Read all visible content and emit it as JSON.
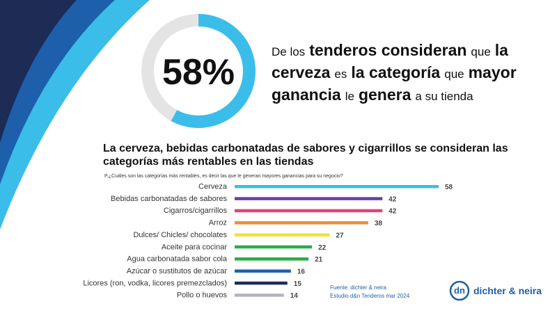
{
  "headline": [
    {
      "text": "De los",
      "bold": false
    },
    {
      "text": "tenderos consideran",
      "bold": true
    },
    {
      "text": "que",
      "bold": false
    },
    {
      "text": "la cerveza",
      "bold": true
    },
    {
      "text": "es",
      "bold": false
    },
    {
      "text": "la categoría",
      "bold": true
    },
    {
      "text": "que",
      "bold": false
    },
    {
      "text": "mayor ganancia",
      "bold": true
    },
    {
      "text": "le",
      "bold": false
    },
    {
      "text": "genera",
      "bold": true
    },
    {
      "text": "a su tienda",
      "bold": false
    }
  ],
  "chart_data": [
    {
      "type": "pie",
      "values": [
        58,
        42
      ],
      "value_labels": [
        "58%",
        null
      ],
      "colors": [
        "#3bbde9",
        "#e4e4e4"
      ]
    },
    {
      "type": "bar",
      "orientation": "horizontal",
      "title": "La cerveza, bebidas carbonatadas de sabores y cigarrillos se consideran las categorías más rentables en las tiendas",
      "subtitle": "P.¿Cuáles son las categorías más rentables, es decir las que le generan mayores ganancias para su negocio?",
      "categories": [
        "Cerveza",
        "Bebidas carbonatadas de sabores",
        "Cigarros/cigarrillos",
        "Arroz",
        "Dulces/ Chicles/ chocolates",
        "Aceite para cocinar",
        "Agua carbonatada sabor cola",
        "Azúcar o sustitutos de azúcar",
        "Licores (ron, vodka, licores premezclados)",
        "Pollo o huevos"
      ],
      "values": [
        58,
        42,
        42,
        38,
        27,
        22,
        21,
        16,
        15,
        14
      ],
      "colors": [
        "#3bbde9",
        "#6a3fa0",
        "#e4407a",
        "#f08c3c",
        "#f2e230",
        "#2bab4a",
        "#2bab4a",
        "#1f5fa8",
        "#1b2a5e",
        "#b4b4c0"
      ]
    }
  ],
  "source": [
    "Fuente: dichter & neira",
    "Estudio d&n Tenderos mar 2024"
  ],
  "logo": {
    "mark": "dn",
    "text": "dichter & neira"
  }
}
